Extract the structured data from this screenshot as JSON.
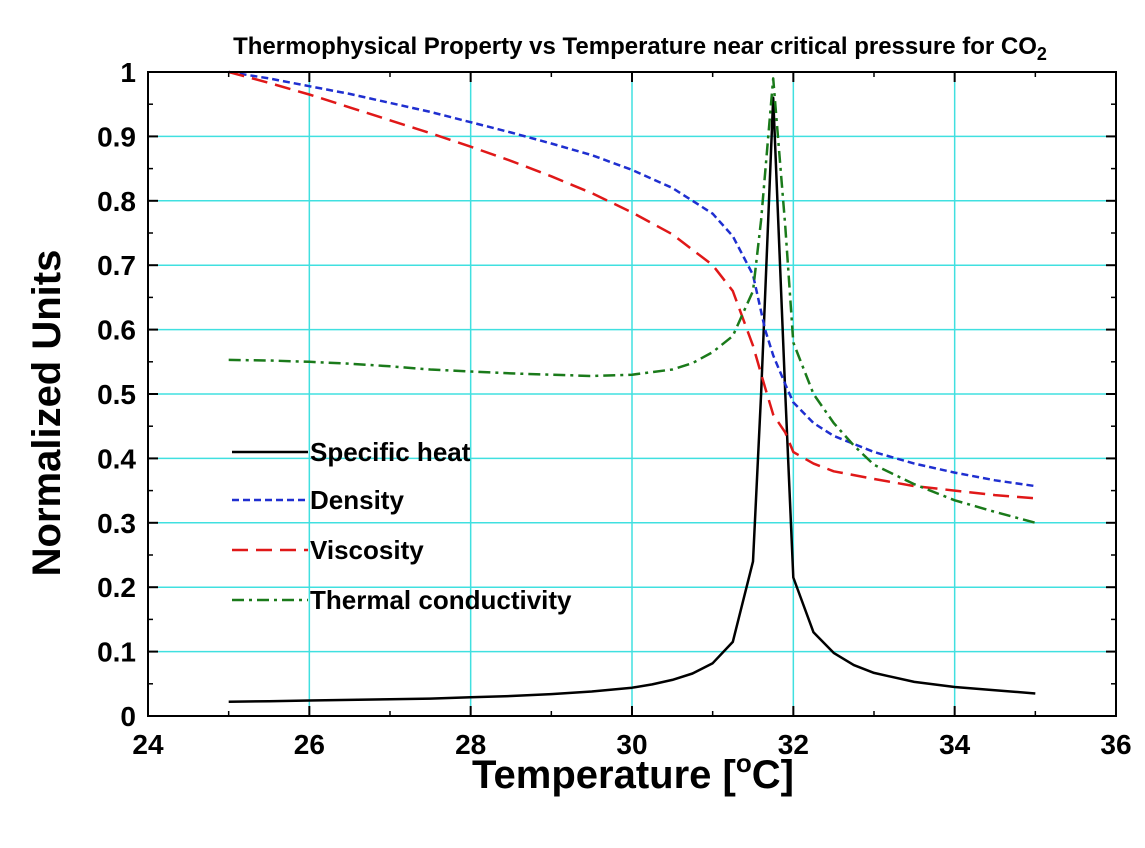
{
  "chart_data": {
    "type": "line",
    "title": {
      "main": "Thermophysical Property vs Temperature near critical pressure for CO",
      "subscript": "2"
    },
    "xlabel": {
      "before": "Temperature [",
      "superscript": "o",
      "after": "C]"
    },
    "ylabel": "Normalized Units",
    "xlim": [
      24,
      36
    ],
    "ylim": [
      0,
      1
    ],
    "x_ticks": [
      "24",
      "26",
      "28",
      "30",
      "32",
      "34",
      "36"
    ],
    "y_ticks": [
      "0",
      "0.1",
      "0.2",
      "0.3",
      "0.4",
      "0.5",
      "0.6",
      "0.7",
      "0.8",
      "0.9",
      "1"
    ],
    "grid": true,
    "grid_color": "#40e0e0",
    "legend_position": "left-center",
    "series": [
      {
        "name": "Specific heat",
        "color": "#000000",
        "dash": "solid",
        "x": [
          25,
          25.5,
          26,
          26.5,
          27,
          27.5,
          28,
          28.5,
          29,
          29.5,
          30,
          30.25,
          30.5,
          30.75,
          31,
          31.25,
          31.5,
          31.6,
          31.75,
          31.9,
          32,
          32.25,
          32.5,
          32.75,
          33,
          33.5,
          34,
          34.5,
          35
        ],
        "y": [
          0.022,
          0.023,
          0.024,
          0.025,
          0.026,
          0.027,
          0.029,
          0.031,
          0.034,
          0.038,
          0.044,
          0.049,
          0.056,
          0.066,
          0.082,
          0.115,
          0.24,
          0.5,
          0.96,
          0.5,
          0.215,
          0.13,
          0.098,
          0.079,
          0.067,
          0.053,
          0.045,
          0.04,
          0.035
        ]
      },
      {
        "name": "Density",
        "color": "#1f2fd0",
        "dash": "short",
        "x": [
          25,
          25.5,
          26,
          26.5,
          27,
          27.5,
          28,
          28.5,
          29,
          29.5,
          30,
          30.5,
          31,
          31.25,
          31.5,
          31.65,
          31.75,
          31.9,
          32,
          32.25,
          32.5,
          33,
          33.5,
          34,
          34.5,
          35
        ],
        "y": [
          1.0,
          0.99,
          0.978,
          0.966,
          0.952,
          0.938,
          0.922,
          0.906,
          0.889,
          0.871,
          0.848,
          0.82,
          0.78,
          0.745,
          0.685,
          0.6,
          0.56,
          0.515,
          0.487,
          0.455,
          0.435,
          0.41,
          0.392,
          0.378,
          0.366,
          0.357
        ]
      },
      {
        "name": "Viscosity",
        "color": "#e01818",
        "dash": "long",
        "x": [
          25,
          25.5,
          26,
          26.5,
          27,
          27.5,
          28,
          28.5,
          29,
          29.5,
          30,
          30.5,
          31,
          31.25,
          31.5,
          31.65,
          31.75,
          31.9,
          32,
          32.25,
          32.5,
          33,
          33.5,
          34,
          34.5,
          35
        ],
        "y": [
          1.0,
          0.983,
          0.965,
          0.945,
          0.925,
          0.905,
          0.884,
          0.862,
          0.838,
          0.812,
          0.782,
          0.748,
          0.7,
          0.66,
          0.575,
          0.51,
          0.468,
          0.44,
          0.41,
          0.392,
          0.38,
          0.368,
          0.357,
          0.35,
          0.343,
          0.338
        ]
      },
      {
        "name": "Thermal conductivity",
        "color": "#1a7a1a",
        "dash": "dashdot",
        "x": [
          25,
          25.5,
          26,
          26.5,
          27,
          27.5,
          28,
          28.5,
          29,
          29.5,
          30,
          30.5,
          30.75,
          31,
          31.25,
          31.5,
          31.6,
          31.75,
          31.9,
          32,
          32.25,
          32.5,
          32.75,
          33,
          33.5,
          34,
          34.5,
          35
        ],
        "y": [
          0.553,
          0.552,
          0.55,
          0.547,
          0.543,
          0.538,
          0.535,
          0.532,
          0.53,
          0.528,
          0.53,
          0.538,
          0.548,
          0.565,
          0.59,
          0.66,
          0.77,
          0.99,
          0.76,
          0.58,
          0.5,
          0.455,
          0.42,
          0.39,
          0.36,
          0.335,
          0.317,
          0.3
        ]
      }
    ]
  }
}
